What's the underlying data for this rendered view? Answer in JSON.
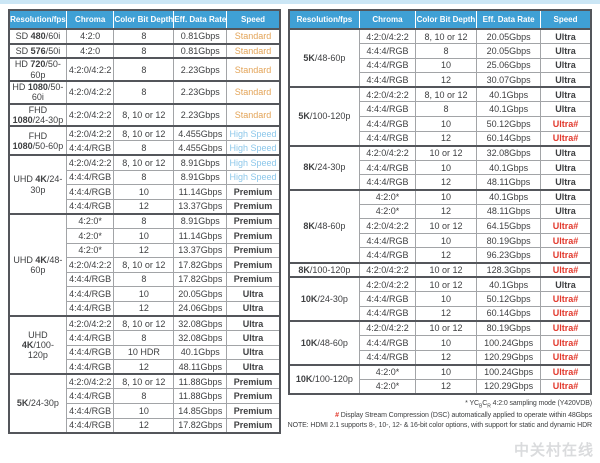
{
  "colors": {
    "header_blue": "#3fa0d5",
    "standard_orange": "#e3a458",
    "high_speed_blue": "#8cc7ea",
    "premium_ultra_dark": "#3f4042",
    "ultra_dsc_red": "#e2382c",
    "top_strip_blue": "#cbe6f5",
    "group_border": "#54565b"
  },
  "tables": [
    {
      "headers": [
        "Resolution/fps",
        "Chroma",
        "Color Bit Depth",
        "Eff. Data Rate",
        "Speed"
      ],
      "groups": [
        {
          "res": {
            "pre": "SD ",
            "bold": "480",
            "post": "/60i"
          },
          "rows": [
            {
              "chroma": "4:2:0",
              "depth": "8",
              "rate": "0.81Gbps",
              "speed": "Standard",
              "cls": "standard"
            }
          ]
        },
        {
          "res": {
            "pre": "SD ",
            "bold": "576",
            "post": "/50i"
          },
          "rows": [
            {
              "chroma": "4:2:0",
              "depth": "8",
              "rate": "0.81Gbps",
              "speed": "Standard",
              "cls": "standard"
            }
          ]
        },
        {
          "res": {
            "pre": "HD ",
            "bold": "720",
            "post": "/50-60p"
          },
          "rows": [
            {
              "chroma": "4:2:0/4:2:2",
              "depth": "8",
              "rate": "2.23Gbps",
              "speed": "Standard",
              "cls": "standard"
            }
          ]
        },
        {
          "res": {
            "pre": "HD ",
            "bold": "1080",
            "post": "/50-60i"
          },
          "rows": [
            {
              "chroma": "4:2:0/4:2:2",
              "depth": "8",
              "rate": "2.23Gbps",
              "speed": "Standard",
              "cls": "standard"
            }
          ]
        },
        {
          "res": {
            "pre": "FHD ",
            "bold": "1080",
            "post": "/24-30p"
          },
          "rows": [
            {
              "chroma": "4:2:0/4:2:2",
              "depth": "8, 10 or 12",
              "rate": "2.23Gbps",
              "speed": "Standard",
              "cls": "standard"
            }
          ]
        },
        {
          "res": {
            "pre": "FHD ",
            "bold": "1080",
            "post": "/50-60p"
          },
          "rows": [
            {
              "chroma": "4:2:0/4:2:2",
              "depth": "8, 10 or 12",
              "rate": "4.455Gbps",
              "speed": "High Speed",
              "cls": "high"
            },
            {
              "chroma": "4:4:4/RGB",
              "depth": "8",
              "rate": "4.455Gbps",
              "speed": "High Speed",
              "cls": "high"
            }
          ]
        },
        {
          "res": {
            "pre": "UHD ",
            "bold": "4K",
            "post": "/24-30p"
          },
          "rows": [
            {
              "chroma": "4:2:0/4:2:2",
              "depth": "8, 10 or 12",
              "rate": "8.91Gbps",
              "speed": "High Speed",
              "cls": "high"
            },
            {
              "chroma": "4:4:4/RGB",
              "depth": "8",
              "rate": "8.91Gbps",
              "speed": "High Speed",
              "cls": "high"
            },
            {
              "chroma": "4:4:4/RGB",
              "depth": "10",
              "rate": "11.14Gbps",
              "speed": "Premium",
              "cls": "dark"
            },
            {
              "chroma": "4:4:4/RGB",
              "depth": "12",
              "rate": "13.37Gbps",
              "speed": "Premium",
              "cls": "dark"
            }
          ]
        },
        {
          "res": {
            "pre": "UHD ",
            "bold": "4K",
            "post": "/48-60p"
          },
          "rows": [
            {
              "chroma": "4:2:0*",
              "depth": "8",
              "rate": "8.91Gbps",
              "speed": "Premium",
              "cls": "dark"
            },
            {
              "chroma": "4:2:0*",
              "depth": "10",
              "rate": "11.14Gbps",
              "speed": "Premium",
              "cls": "dark"
            },
            {
              "chroma": "4:2:0*",
              "depth": "12",
              "rate": "13.37Gbps",
              "speed": "Premium",
              "cls": "dark"
            },
            {
              "chroma": "4:2:0/4:2:2",
              "depth": "8, 10 or 12",
              "rate": "17.82Gbps",
              "speed": "Premium",
              "cls": "dark"
            },
            {
              "chroma": "4:4:4/RGB",
              "depth": "8",
              "rate": "17.82Gbps",
              "speed": "Premium",
              "cls": "dark"
            },
            {
              "chroma": "4:4:4/RGB",
              "depth": "10",
              "rate": "20.05Gbps",
              "speed": "Ultra",
              "cls": "dark"
            },
            {
              "chroma": "4:4:4/RGB",
              "depth": "12",
              "rate": "24.06Gbps",
              "speed": "Ultra",
              "cls": "dark"
            }
          ]
        },
        {
          "res": {
            "pre": "UHD ",
            "bold": "4K",
            "post": "/100-120p"
          },
          "rows": [
            {
              "chroma": "4:2:0/4:2:2",
              "depth": "8, 10 or 12",
              "rate": "32.08Gbps",
              "speed": "Ultra",
              "cls": "dark"
            },
            {
              "chroma": "4:4:4/RGB",
              "depth": "8",
              "rate": "32.08Gbps",
              "speed": "Ultra",
              "cls": "dark"
            },
            {
              "chroma": "4:4:4/RGB",
              "depth": "10 HDR",
              "rate": "40.1Gbps",
              "speed": "Ultra",
              "cls": "dark"
            },
            {
              "chroma": "4:4:4/RGB",
              "depth": "12",
              "rate": "48.11Gbps",
              "speed": "Ultra",
              "cls": "dark"
            }
          ]
        },
        {
          "res": {
            "pre": "",
            "bold": "5K",
            "post": "/24-30p"
          },
          "rows": [
            {
              "chroma": "4:2:0/4:2:2",
              "depth": "8, 10 or 12",
              "rate": "11.88Gbps",
              "speed": "Premium",
              "cls": "dark"
            },
            {
              "chroma": "4:4:4/RGB",
              "depth": "8",
              "rate": "11.88Gbps",
              "speed": "Premium",
              "cls": "dark"
            },
            {
              "chroma": "4:4:4/RGB",
              "depth": "10",
              "rate": "14.85Gbps",
              "speed": "Premium",
              "cls": "dark"
            },
            {
              "chroma": "4:4:4/RGB",
              "depth": "12",
              "rate": "17.82Gbps",
              "speed": "Premium",
              "cls": "dark"
            }
          ]
        }
      ]
    },
    {
      "headers": [
        "Resolution/fps",
        "Chroma",
        "Color Bit Depth",
        "Eff. Data Rate",
        "Speed"
      ],
      "groups": [
        {
          "res": {
            "pre": "",
            "bold": "5K",
            "post": "/48-60p"
          },
          "rows": [
            {
              "chroma": "4:2:0/4:2:2",
              "depth": "8, 10 or 12",
              "rate": "20.05Gbps",
              "speed": "Ultra",
              "cls": "dark"
            },
            {
              "chroma": "4:4:4/RGB",
              "depth": "8",
              "rate": "20.05Gbps",
              "speed": "Ultra",
              "cls": "dark"
            },
            {
              "chroma": "4:4:4/RGB",
              "depth": "10",
              "rate": "25.06Gbps",
              "speed": "Ultra",
              "cls": "dark"
            },
            {
              "chroma": "4:4:4/RGB",
              "depth": "12",
              "rate": "30.07Gbps",
              "speed": "Ultra",
              "cls": "dark"
            }
          ]
        },
        {
          "res": {
            "pre": "",
            "bold": "5K",
            "post": "/100-120p"
          },
          "rows": [
            {
              "chroma": "4:2:0/4:2:2",
              "depth": "8, 10 or 12",
              "rate": "40.1Gbps",
              "speed": "Ultra",
              "cls": "dark"
            },
            {
              "chroma": "4:4:4/RGB",
              "depth": "8",
              "rate": "40.1Gbps",
              "speed": "Ultra",
              "cls": "dark"
            },
            {
              "chroma": "4:4:4/RGB",
              "depth": "10",
              "rate": "50.12Gbps",
              "speed": "Ultra#",
              "cls": "red"
            },
            {
              "chroma": "4:4:4/RGB",
              "depth": "12",
              "rate": "60.14Gbps",
              "speed": "Ultra#",
              "cls": "red"
            }
          ]
        },
        {
          "res": {
            "pre": "",
            "bold": "8K",
            "post": "/24-30p"
          },
          "rows": [
            {
              "chroma": "4:2:0/4:2:2",
              "depth": "10 or 12",
              "rate": "32.08Gbps",
              "speed": "Ultra",
              "cls": "dark"
            },
            {
              "chroma": "4:4:4/RGB",
              "depth": "10",
              "rate": "40.1Gbps",
              "speed": "Ultra",
              "cls": "dark"
            },
            {
              "chroma": "4:4:4/RGB",
              "depth": "12",
              "rate": "48.11Gbps",
              "speed": "Ultra",
              "cls": "dark"
            }
          ]
        },
        {
          "res": {
            "pre": "",
            "bold": "8K",
            "post": "/48-60p"
          },
          "rows": [
            {
              "chroma": "4:2:0*",
              "depth": "10",
              "rate": "40.1Gbps",
              "speed": "Ultra",
              "cls": "dark"
            },
            {
              "chroma": "4:2:0*",
              "depth": "12",
              "rate": "48.11Gbps",
              "speed": "Ultra",
              "cls": "dark"
            },
            {
              "chroma": "4:2:0/4:2:2",
              "depth": "10 or 12",
              "rate": "64.15Gbps",
              "speed": "Ultra#",
              "cls": "red"
            },
            {
              "chroma": "4:4:4/RGB",
              "depth": "10",
              "rate": "80.19Gbps",
              "speed": "Ultra#",
              "cls": "red"
            },
            {
              "chroma": "4:4:4/RGB",
              "depth": "12",
              "rate": "96.23Gbps",
              "speed": "Ultra#",
              "cls": "red"
            }
          ]
        },
        {
          "res": {
            "pre": "",
            "bold": "8K",
            "post": "/100-120p"
          },
          "rows": [
            {
              "chroma": "4:2:0/4:2:2",
              "depth": "10 or 12",
              "rate": "128.3Gbps",
              "speed": "Ultra#",
              "cls": "red"
            }
          ]
        },
        {
          "res": {
            "pre": "",
            "bold": "10K",
            "post": "/24-30p"
          },
          "rows": [
            {
              "chroma": "4:2:0/4:2:2",
              "depth": "10 or 12",
              "rate": "40.1Gbps",
              "speed": "Ultra",
              "cls": "dark"
            },
            {
              "chroma": "4:4:4/RGB",
              "depth": "10",
              "rate": "50.12Gbps",
              "speed": "Ultra#",
              "cls": "red"
            },
            {
              "chroma": "4:4:4/RGB",
              "depth": "12",
              "rate": "60.14Gbps",
              "speed": "Ultra#",
              "cls": "red"
            }
          ]
        },
        {
          "res": {
            "pre": "",
            "bold": "10K",
            "post": "/48-60p"
          },
          "rows": [
            {
              "chroma": "4:2:0/4:2:2",
              "depth": "10 or 12",
              "rate": "80.19Gbps",
              "speed": "Ultra#",
              "cls": "red"
            },
            {
              "chroma": "4:4:4/RGB",
              "depth": "10",
              "rate": "100.24Gbps",
              "speed": "Ultra#",
              "cls": "red"
            },
            {
              "chroma": "4:4:4/RGB",
              "depth": "12",
              "rate": "120.29Gbps",
              "speed": "Ultra#",
              "cls": "red"
            }
          ]
        },
        {
          "res": {
            "pre": "",
            "bold": "10K",
            "post": "/100-120p"
          },
          "rows": [
            {
              "chroma": "4:2:0*",
              "depth": "10",
              "rate": "100.24Gbps",
              "speed": "Ultra#",
              "cls": "red"
            },
            {
              "chroma": "4:2:0*",
              "depth": "12",
              "rate": "120.29Gbps",
              "speed": "Ultra#",
              "cls": "red"
            }
          ]
        }
      ]
    }
  ],
  "footnotes": {
    "sampling": {
      "p1": "* YC",
      "s1": "B",
      "p2": "C",
      "s2": "R",
      "p3": " 4:2:0 sampling mode (Y420VDB)"
    },
    "dsc": {
      "symbol": "#",
      "text": " Display Stream Compression (DSC) automatically applied to operate within 48Gbps"
    },
    "note": "NOTE: HDMI 2.1 supports 8-, 10-, 12- & 16-bit color options, with support for static and dynamic HDR"
  },
  "watermark": "中关村在线"
}
